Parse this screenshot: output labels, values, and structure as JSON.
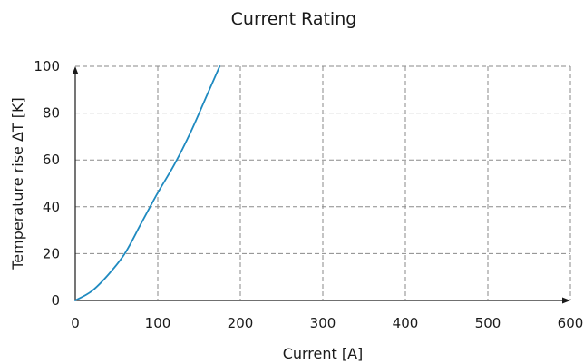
{
  "chart_data": {
    "type": "line",
    "title": "Current Rating",
    "xlabel": "Current [A]",
    "ylabel": "Temperature rise ΔT [K]",
    "xlim": [
      0,
      600
    ],
    "ylim": [
      0,
      100
    ],
    "xticks": [
      0,
      100,
      200,
      300,
      400,
      500,
      600
    ],
    "yticks": [
      0,
      20,
      40,
      60,
      80,
      100
    ],
    "xtick_labels": [
      "0",
      "100",
      "200",
      "300",
      "400",
      "500",
      "600"
    ],
    "ytick_labels": [
      "0",
      "20",
      "40",
      "60",
      "80",
      "100"
    ],
    "grid": true,
    "series": [
      {
        "color": "#1f8ac0",
        "x": [
          0,
          20,
          40,
          60,
          80,
          100,
          120,
          140,
          160,
          175
        ],
        "y": [
          0,
          4,
          11,
          20,
          33,
          46,
          58,
          72,
          88,
          100
        ]
      }
    ]
  }
}
